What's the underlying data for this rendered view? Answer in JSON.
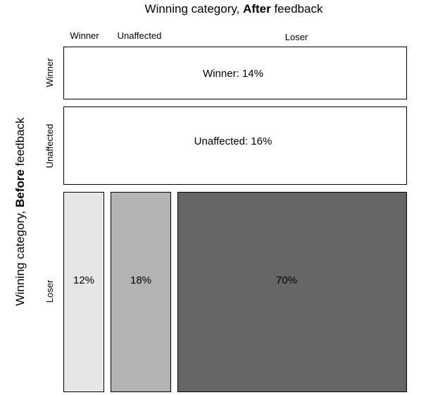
{
  "chart_data": {
    "type": "mosaic",
    "title_parts": [
      "Winning category, ",
      "After",
      " feedback"
    ],
    "ylabel_parts": [
      "Winning category, ",
      "Before",
      " feedback"
    ],
    "column_labels": [
      "Winner",
      "Unaffected",
      "Loser"
    ],
    "row_labels": [
      "Winner",
      "Unaffected",
      "Loser"
    ],
    "tiles": [
      {
        "row": "Winner",
        "label": "Winner: 14%",
        "value": 14,
        "fill": "#ffffff"
      },
      {
        "row": "Unaffected",
        "label": "Unaffected: 16%",
        "value": 16,
        "fill": "#ffffff"
      },
      {
        "row": "Loser",
        "column": "Winner",
        "label": "12%",
        "value": 12,
        "fill": "#e6e6e6"
      },
      {
        "row": "Loser",
        "column": "Unaffected",
        "label": "18%",
        "value": 18,
        "fill": "#b3b3b3"
      },
      {
        "row": "Loser",
        "column": "Loser",
        "label": "70%",
        "value": 70,
        "fill": "#666666"
      }
    ]
  }
}
